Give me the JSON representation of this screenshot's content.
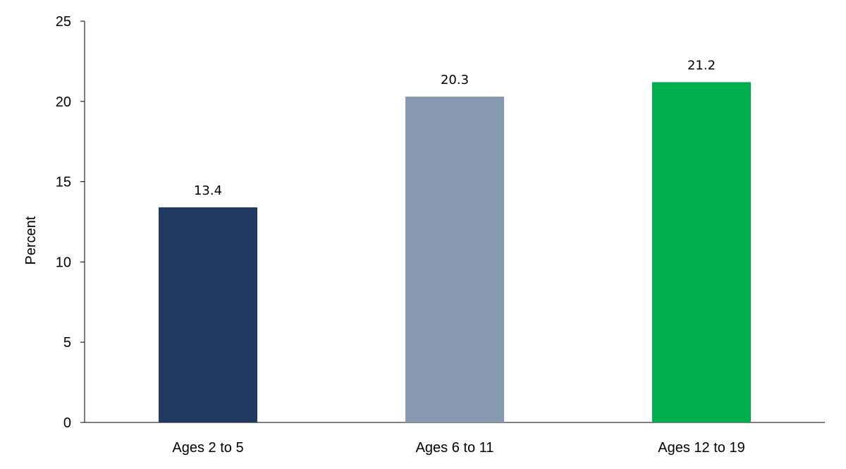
{
  "chart_data": {
    "type": "bar",
    "categories": [
      "Ages 2 to 5",
      "Ages 6 to 11",
      "Ages 12 to 19"
    ],
    "values": [
      13.4,
      20.3,
      21.2
    ],
    "data_labels": [
      "13.4",
      "20.3",
      "21.2"
    ],
    "bar_colors": [
      "#213a62",
      "#8599b0",
      "#00ae4d"
    ],
    "title": "",
    "xlabel": "",
    "ylabel": "Percent",
    "ylim": [
      0,
      25
    ],
    "yticks": [
      "0",
      "5",
      "10",
      "15",
      "20",
      "25"
    ],
    "grid": false,
    "legend": "none"
  }
}
